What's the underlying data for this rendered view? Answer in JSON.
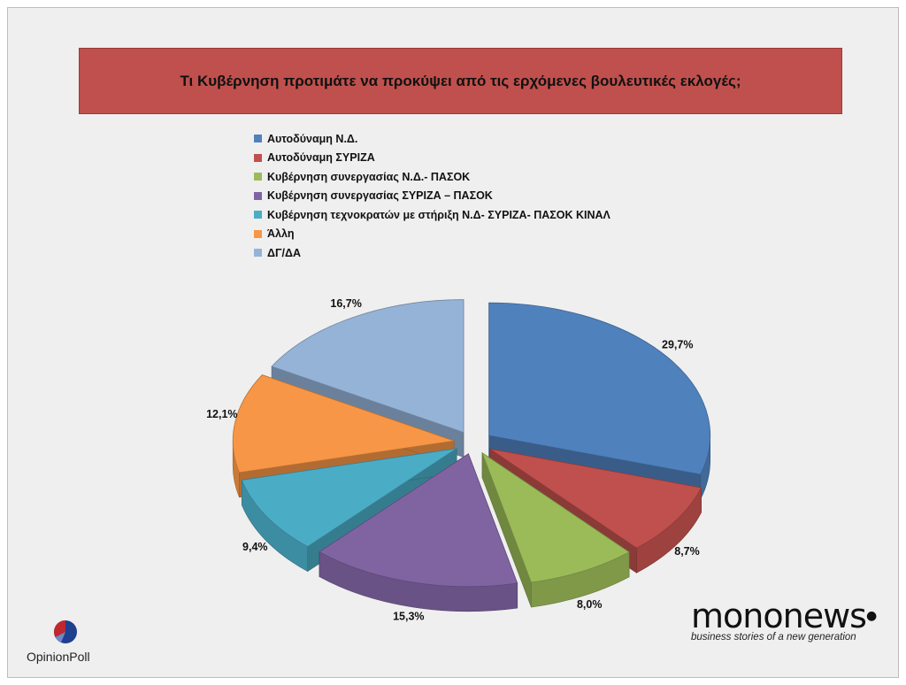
{
  "chart_data": {
    "type": "pie",
    "title": "Τι Κυβέρνηση προτιμάτε να προκύψει από τις ερχόμενες βουλευτικές εκλογές;",
    "legend_position": "top",
    "categories": [
      "Αυτοδύναμη Ν.Δ.",
      "Αυτοδύναμη ΣΥΡΙΖΑ",
      "Κυβέρνηση συνεργασίας Ν.Δ.- ΠΑΣΟΚ",
      "Κυβέρνηση συνεργασίας ΣΥΡΙΖΑ – ΠΑΣΟΚ",
      "Κυβέρνηση τεχνοκρατών με στήριξη Ν.Δ- ΣΥΡΙΖΑ- ΠΑΣΟΚ ΚΙΝΑΛ",
      "Άλλη",
      "ΔΓ/ΔΑ"
    ],
    "values": [
      29.7,
      8.7,
      8.0,
      15.3,
      9.4,
      12.1,
      16.7
    ],
    "labels": [
      "29,7%",
      "8,7%",
      "8,0%",
      "15,3%",
      "9,4%",
      "12,1%",
      "16,7%"
    ],
    "colors": [
      "#4f81bd",
      "#c0504d",
      "#9bbb59",
      "#8064a2",
      "#4bacc6",
      "#f79646",
      "#95b3d7"
    ]
  },
  "logos": {
    "opinionpoll": "OpinionPoll",
    "mono_light": "mono",
    "mono_bold": "news",
    "mono_tagline": "business stories of a new generation"
  }
}
